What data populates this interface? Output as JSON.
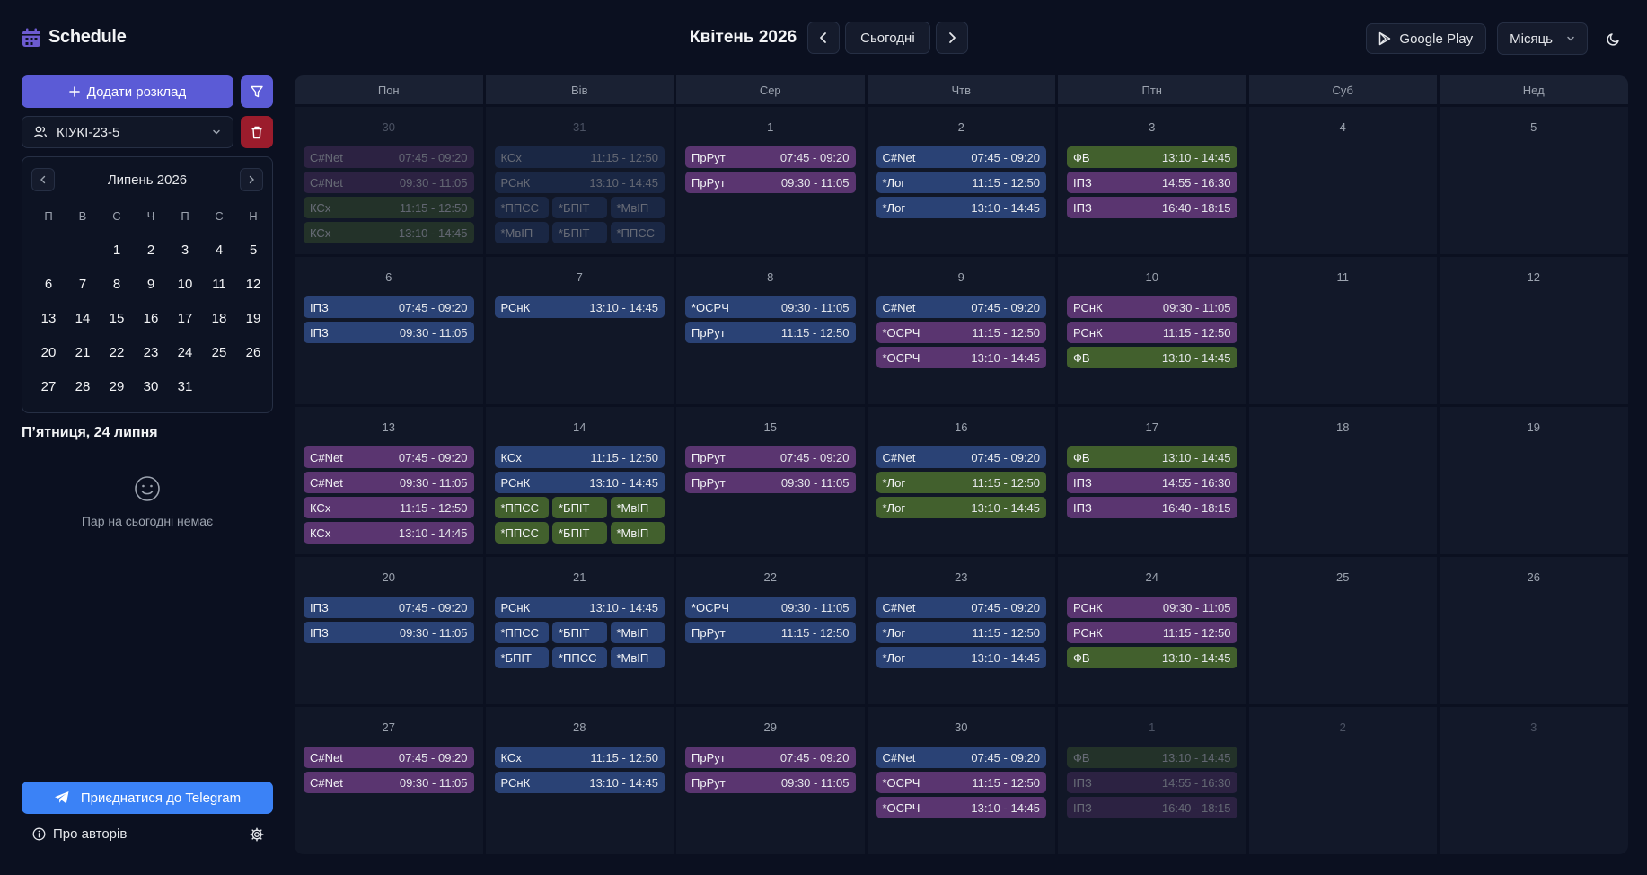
{
  "app": {
    "title": "Schedule"
  },
  "header": {
    "month_title": "Квітень 2026",
    "today_label": "Сьогодні",
    "gplay_label": "Google Play",
    "view_label": "Місяць"
  },
  "sidebar": {
    "add_label": "Додати розклад",
    "group_label": "КІУКІ-23-5",
    "mini_cal": {
      "title": "Липень 2026",
      "weekdays": [
        "П",
        "В",
        "С",
        "Ч",
        "П",
        "С",
        "Н"
      ],
      "lead_blanks": 2,
      "days": 31
    },
    "today_title": "П’ятниця, 24 липня",
    "no_pairs": "Пар на сьогодні немає",
    "telegram_label": "Приєднатися до Telegram",
    "about_label": "Про авторів"
  },
  "colors": {
    "accent": "#5b5bd6",
    "danger": "#9b1c2c",
    "telegram": "#3b82f6",
    "blue": "#2a4275",
    "purple": "#5a3570",
    "green": "#42602d"
  },
  "calendar": {
    "weekdays": [
      "Пон",
      "Вів",
      "Сер",
      "Чтв",
      "Птн",
      "Суб",
      "Нед"
    ],
    "weeks": [
      [
        {
          "day": "30",
          "out": true,
          "events": [
            {
              "name": "C#Net",
              "time": "07:45 - 09:20",
              "color": "purple"
            },
            {
              "name": "C#Net",
              "time": "09:30 - 11:05",
              "color": "purple"
            },
            {
              "name": "КСх",
              "time": "11:15 - 12:50",
              "color": "green"
            },
            {
              "name": "КСх",
              "time": "13:10 - 14:45",
              "color": "green"
            }
          ]
        },
        {
          "day": "31",
          "out": true,
          "events": [
            {
              "name": "КСх",
              "time": "11:15 - 12:50",
              "color": "blue"
            },
            {
              "name": "РСнК",
              "time": "13:10 - 14:45",
              "color": "blue"
            },
            {
              "chips": [
                {
                  "name": "*ППСС",
                  "color": "blue"
                },
                {
                  "name": "*БПІТ",
                  "color": "blue"
                },
                {
                  "name": "*МвІП",
                  "color": "blue"
                }
              ]
            },
            {
              "chips": [
                {
                  "name": "*МвІП",
                  "color": "blue"
                },
                {
                  "name": "*БПІТ",
                  "color": "blue"
                },
                {
                  "name": "*ППСС",
                  "color": "blue"
                }
              ]
            }
          ]
        },
        {
          "day": "1",
          "events": [
            {
              "name": "ПрРут",
              "time": "07:45 - 09:20",
              "color": "purple"
            },
            {
              "name": "ПрРут",
              "time": "09:30 - 11:05",
              "color": "purple"
            }
          ]
        },
        {
          "day": "2",
          "events": [
            {
              "name": "C#Net",
              "time": "07:45 - 09:20",
              "color": "blue"
            },
            {
              "name": "*Лог",
              "time": "11:15 - 12:50",
              "color": "blue"
            },
            {
              "name": "*Лог",
              "time": "13:10 - 14:45",
              "color": "blue"
            }
          ]
        },
        {
          "day": "3",
          "events": [
            {
              "name": "ФВ",
              "time": "13:10 - 14:45",
              "color": "green"
            },
            {
              "name": "ІПЗ",
              "time": "14:55 - 16:30",
              "color": "purple"
            },
            {
              "name": "ІПЗ",
              "time": "16:40 - 18:15",
              "color": "purple"
            }
          ]
        },
        {
          "day": "4",
          "events": []
        },
        {
          "day": "5",
          "events": []
        }
      ],
      [
        {
          "day": "6",
          "events": [
            {
              "name": "ІПЗ",
              "time": "07:45 - 09:20",
              "color": "blue"
            },
            {
              "name": "ІПЗ",
              "time": "09:30 - 11:05",
              "color": "blue"
            }
          ]
        },
        {
          "day": "7",
          "events": [
            {
              "name": "РСнК",
              "time": "13:10 - 14:45",
              "color": "blue"
            }
          ]
        },
        {
          "day": "8",
          "events": [
            {
              "name": "*ОСРЧ",
              "time": "09:30 - 11:05",
              "color": "blue"
            },
            {
              "name": "ПрРут",
              "time": "11:15 - 12:50",
              "color": "blue"
            }
          ]
        },
        {
          "day": "9",
          "events": [
            {
              "name": "C#Net",
              "time": "07:45 - 09:20",
              "color": "blue"
            },
            {
              "name": "*ОСРЧ",
              "time": "11:15 - 12:50",
              "color": "purple"
            },
            {
              "name": "*ОСРЧ",
              "time": "13:10 - 14:45",
              "color": "purple"
            }
          ]
        },
        {
          "day": "10",
          "events": [
            {
              "name": "РСнК",
              "time": "09:30 - 11:05",
              "color": "purple"
            },
            {
              "name": "РСнК",
              "time": "11:15 - 12:50",
              "color": "purple"
            },
            {
              "name": "ФВ",
              "time": "13:10 - 14:45",
              "color": "green"
            }
          ]
        },
        {
          "day": "11",
          "events": []
        },
        {
          "day": "12",
          "events": []
        }
      ],
      [
        {
          "day": "13",
          "events": [
            {
              "name": "C#Net",
              "time": "07:45 - 09:20",
              "color": "purple"
            },
            {
              "name": "C#Net",
              "time": "09:30 - 11:05",
              "color": "purple"
            },
            {
              "name": "КСх",
              "time": "11:15 - 12:50",
              "color": "purple"
            },
            {
              "name": "КСх",
              "time": "13:10 - 14:45",
              "color": "purple"
            }
          ]
        },
        {
          "day": "14",
          "events": [
            {
              "name": "КСх",
              "time": "11:15 - 12:50",
              "color": "blue"
            },
            {
              "name": "РСнК",
              "time": "13:10 - 14:45",
              "color": "blue"
            },
            {
              "chips": [
                {
                  "name": "*ППСС",
                  "color": "green"
                },
                {
                  "name": "*БПІТ",
                  "color": "green"
                },
                {
                  "name": "*МвІП",
                  "color": "green"
                }
              ]
            },
            {
              "chips": [
                {
                  "name": "*ППСС",
                  "color": "green"
                },
                {
                  "name": "*БПІТ",
                  "color": "green"
                },
                {
                  "name": "*МвІП",
                  "color": "green"
                }
              ]
            }
          ]
        },
        {
          "day": "15",
          "events": [
            {
              "name": "ПрРут",
              "time": "07:45 - 09:20",
              "color": "purple"
            },
            {
              "name": "ПрРут",
              "time": "09:30 - 11:05",
              "color": "purple"
            }
          ]
        },
        {
          "day": "16",
          "events": [
            {
              "name": "C#Net",
              "time": "07:45 - 09:20",
              "color": "blue"
            },
            {
              "name": "*Лог",
              "time": "11:15 - 12:50",
              "color": "green"
            },
            {
              "name": "*Лог",
              "time": "13:10 - 14:45",
              "color": "green"
            }
          ]
        },
        {
          "day": "17",
          "events": [
            {
              "name": "ФВ",
              "time": "13:10 - 14:45",
              "color": "green"
            },
            {
              "name": "ІПЗ",
              "time": "14:55 - 16:30",
              "color": "purple"
            },
            {
              "name": "ІПЗ",
              "time": "16:40 - 18:15",
              "color": "purple"
            }
          ]
        },
        {
          "day": "18",
          "events": []
        },
        {
          "day": "19",
          "events": []
        }
      ],
      [
        {
          "day": "20",
          "events": [
            {
              "name": "ІПЗ",
              "time": "07:45 - 09:20",
              "color": "blue"
            },
            {
              "name": "ІПЗ",
              "time": "09:30 - 11:05",
              "color": "blue"
            }
          ]
        },
        {
          "day": "21",
          "events": [
            {
              "name": "РСнК",
              "time": "13:10 - 14:45",
              "color": "blue"
            },
            {
              "chips": [
                {
                  "name": "*ППСС",
                  "color": "blue"
                },
                {
                  "name": "*БПІТ",
                  "color": "blue"
                },
                {
                  "name": "*МвІП",
                  "color": "blue"
                }
              ]
            },
            {
              "chips": [
                {
                  "name": "*БПІТ",
                  "color": "blue"
                },
                {
                  "name": "*ППСС",
                  "color": "blue"
                },
                {
                  "name": "*МвІП",
                  "color": "blue"
                }
              ]
            }
          ]
        },
        {
          "day": "22",
          "events": [
            {
              "name": "*ОСРЧ",
              "time": "09:30 - 11:05",
              "color": "blue"
            },
            {
              "name": "ПрРут",
              "time": "11:15 - 12:50",
              "color": "blue"
            }
          ]
        },
        {
          "day": "23",
          "events": [
            {
              "name": "C#Net",
              "time": "07:45 - 09:20",
              "color": "blue"
            },
            {
              "name": "*Лог",
              "time": "11:15 - 12:50",
              "color": "blue"
            },
            {
              "name": "*Лог",
              "time": "13:10 - 14:45",
              "color": "blue"
            }
          ]
        },
        {
          "day": "24",
          "events": [
            {
              "name": "РСнК",
              "time": "09:30 - 11:05",
              "color": "purple"
            },
            {
              "name": "РСнК",
              "time": "11:15 - 12:50",
              "color": "purple"
            },
            {
              "name": "ФВ",
              "time": "13:10 - 14:45",
              "color": "green"
            }
          ]
        },
        {
          "day": "25",
          "events": []
        },
        {
          "day": "26",
          "events": []
        }
      ],
      [
        {
          "day": "27",
          "events": [
            {
              "name": "C#Net",
              "time": "07:45 - 09:20",
              "color": "purple"
            },
            {
              "name": "C#Net",
              "time": "09:30 - 11:05",
              "color": "purple"
            }
          ]
        },
        {
          "day": "28",
          "events": [
            {
              "name": "КСх",
              "time": "11:15 - 12:50",
              "color": "blue"
            },
            {
              "name": "РСнК",
              "time": "13:10 - 14:45",
              "color": "blue"
            }
          ]
        },
        {
          "day": "29",
          "events": [
            {
              "name": "ПрРут",
              "time": "07:45 - 09:20",
              "color": "purple"
            },
            {
              "name": "ПрРут",
              "time": "09:30 - 11:05",
              "color": "purple"
            }
          ]
        },
        {
          "day": "30",
          "events": [
            {
              "name": "C#Net",
              "time": "07:45 - 09:20",
              "color": "blue"
            },
            {
              "name": "*ОСРЧ",
              "time": "11:15 - 12:50",
              "color": "purple"
            },
            {
              "name": "*ОСРЧ",
              "time": "13:10 - 14:45",
              "color": "purple"
            }
          ]
        },
        {
          "day": "1",
          "out": true,
          "events": [
            {
              "name": "ФВ",
              "time": "13:10 - 14:45",
              "color": "green"
            },
            {
              "name": "ІПЗ",
              "time": "14:55 - 16:30",
              "color": "purple"
            },
            {
              "name": "ІПЗ",
              "time": "16:40 - 18:15",
              "color": "purple"
            }
          ]
        },
        {
          "day": "2",
          "out": true,
          "events": []
        },
        {
          "day": "3",
          "out": true,
          "events": []
        }
      ]
    ]
  }
}
